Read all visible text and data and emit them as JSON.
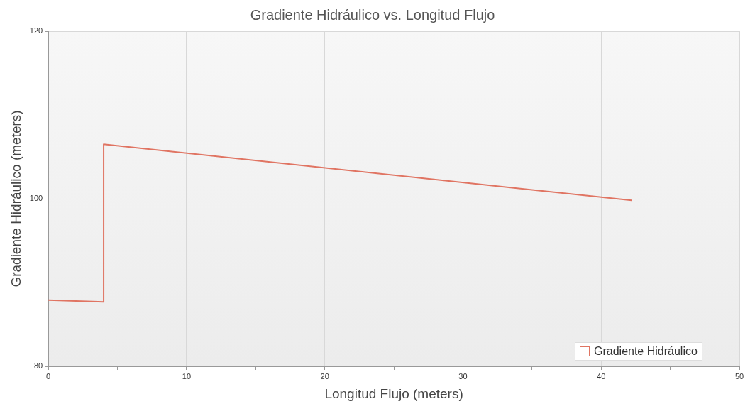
{
  "chart_data": {
    "type": "line",
    "title": "Gradiente Hidráulico vs. Longitud Flujo",
    "xlabel": "Longitud Flujo (meters)",
    "ylabel": "Gradiente Hidráulico (meters)",
    "series": [
      {
        "name": "Gradiente Hidráulico",
        "color": "#e07462",
        "x": [
          0,
          4,
          4,
          42.2
        ],
        "values": [
          87.9,
          87.7,
          106.5,
          99.8
        ]
      }
    ],
    "xlim": [
      0,
      50
    ],
    "xticks": [
      0,
      {
        "value": 5,
        "label": null
      },
      10,
      {
        "value": 15,
        "label": null
      },
      20,
      {
        "value": 25,
        "label": null
      },
      30,
      {
        "value": 35,
        "label": null
      },
      40,
      {
        "value": 45,
        "label": null
      },
      50
    ],
    "ylim": [
      80,
      120
    ],
    "yticks": [
      80,
      100,
      120
    ],
    "grid": true,
    "legend": "bottom right",
    "marker": "none",
    "line_style": "solid"
  }
}
